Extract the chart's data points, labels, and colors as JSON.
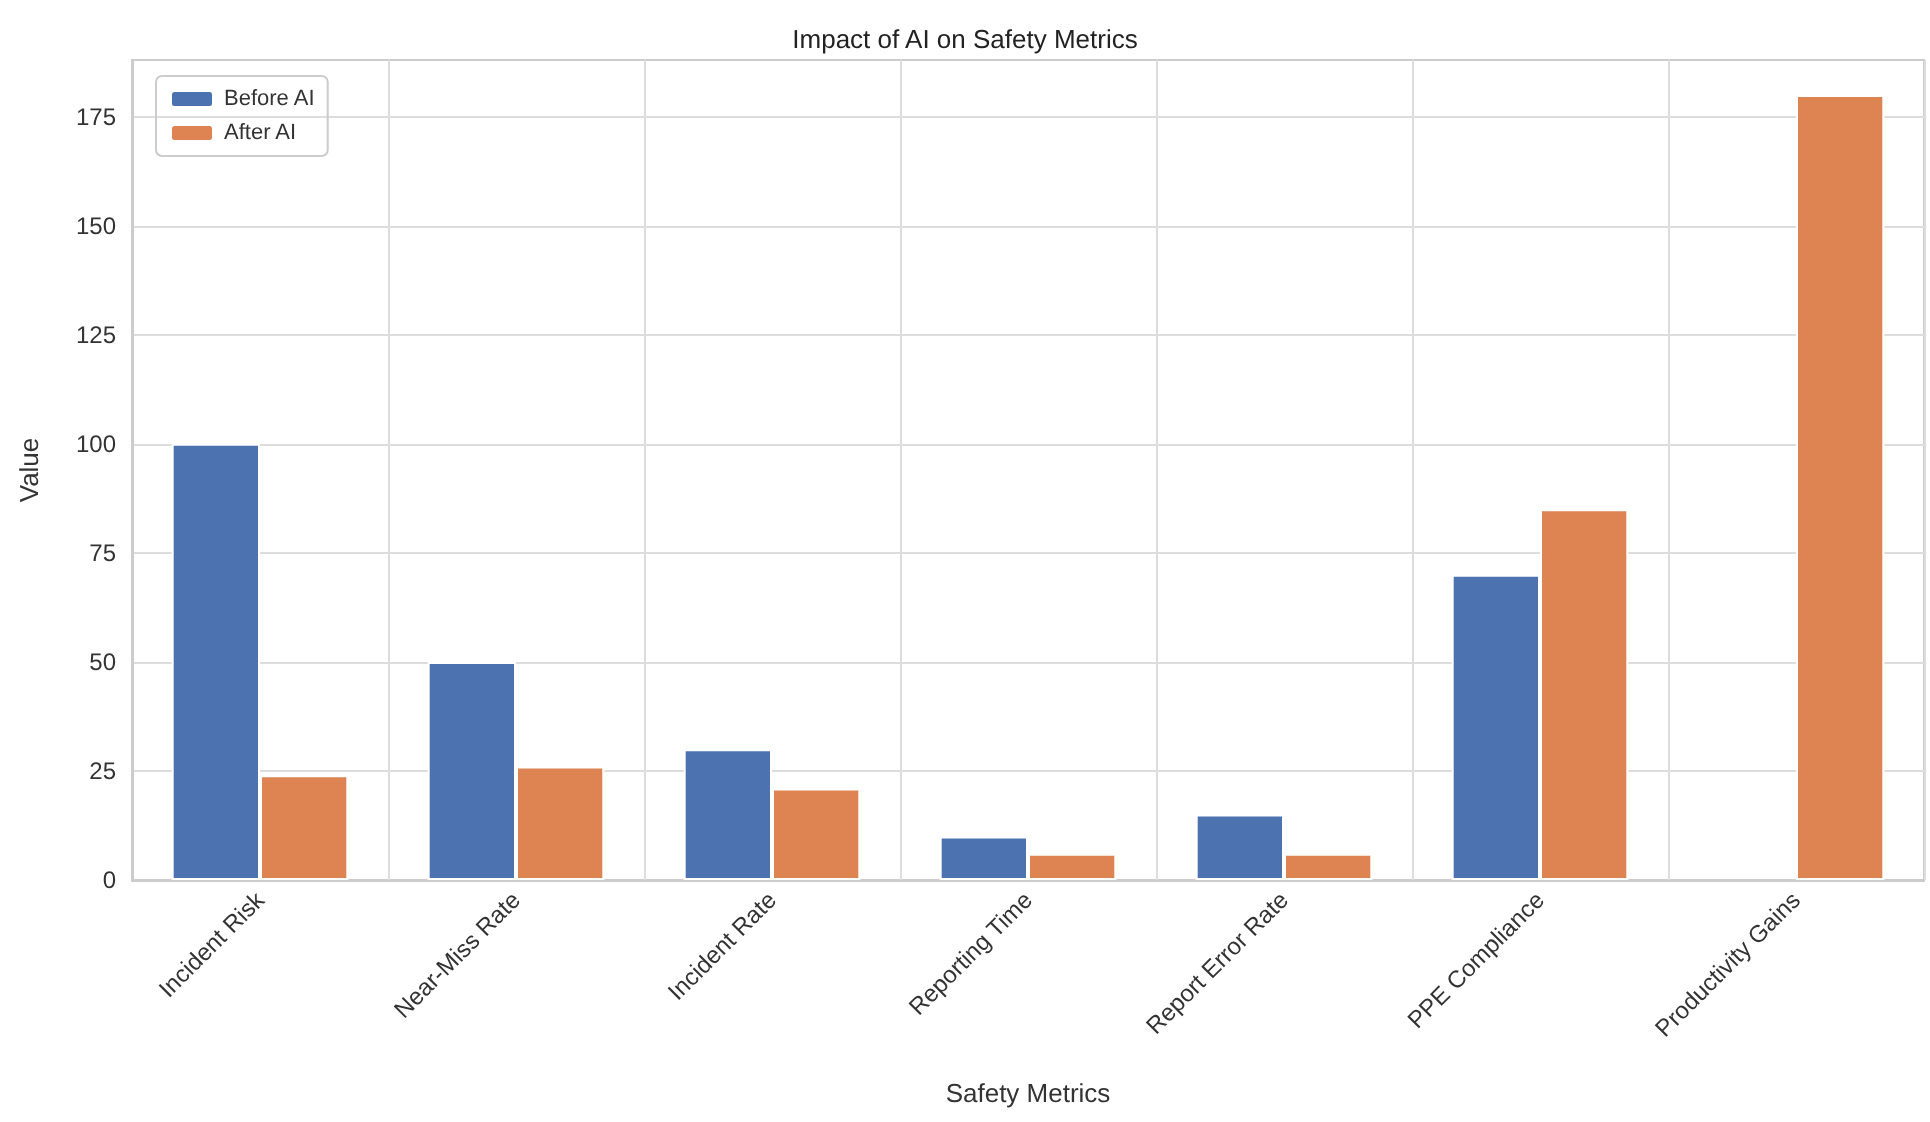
{
  "chart_data": {
    "type": "bar",
    "title": "Impact of AI on Safety Metrics",
    "xlabel": "Safety Metrics",
    "ylabel": "Value",
    "categories": [
      "Incident Risk",
      "Near-Miss Rate",
      "Incident Rate",
      "Reporting Time",
      "Report Error Rate",
      "PPE Compliance",
      "Productivity Gains"
    ],
    "series": [
      {
        "name": "Before AI",
        "color": "#4c72b0",
        "values": [
          100,
          50,
          30,
          10,
          15,
          70,
          null
        ]
      },
      {
        "name": "After AI",
        "color": "#dd8452",
        "values": [
          24,
          26,
          21,
          6,
          6,
          85,
          180
        ]
      }
    ],
    "ylim": [
      0,
      188
    ],
    "yticks": [
      0,
      25,
      50,
      75,
      100,
      125,
      150,
      175
    ],
    "grid": true,
    "legend": "top left"
  }
}
